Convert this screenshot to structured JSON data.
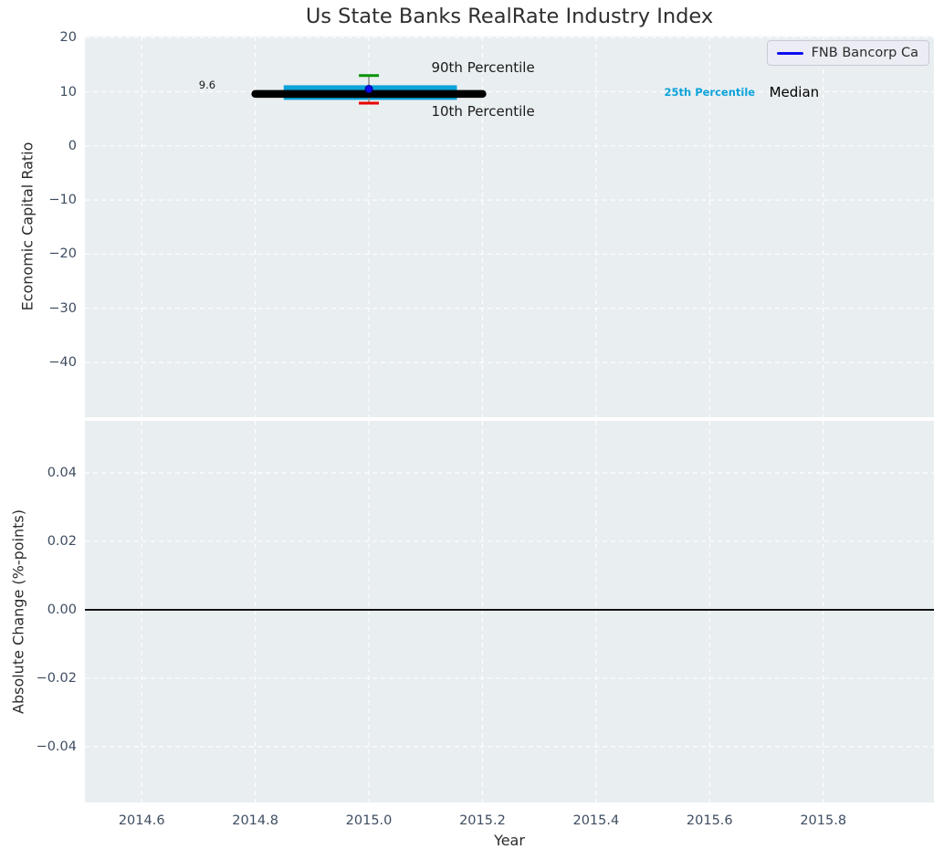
{
  "title": "Us State Banks RealRate Industry Index",
  "legend": {
    "label": "FNB Bancorp Ca"
  },
  "colors": {
    "panel_bg": "#e9eef1",
    "grid": "#ffffff",
    "tick_label": "#3e4d60",
    "axis_label": "#2b2b2b",
    "title": "#2e2e2e",
    "median_line": "#000000",
    "iqr_band": "#0ba3da",
    "p90_cap": "#0a9309",
    "p10_cap": "#e60000",
    "whisker": "#898989",
    "series_line": "#0b0bf0",
    "zero_line": "#000000",
    "legend_bg": "#ecedf4",
    "legend_border": "#c9cad3"
  },
  "x_axis": {
    "label": "Year",
    "lim": [
      2014.5,
      2015.995
    ],
    "ticks": [
      {
        "v": 2014.6,
        "label": "2014.6"
      },
      {
        "v": 2014.8,
        "label": "2014.8"
      },
      {
        "v": 2015.0,
        "label": "2015.0"
      },
      {
        "v": 2015.2,
        "label": "2015.2"
      },
      {
        "v": 2015.4,
        "label": "2015.4"
      },
      {
        "v": 2015.6,
        "label": "2015.6"
      },
      {
        "v": 2015.8,
        "label": "2015.8"
      }
    ]
  },
  "chart_data": [
    {
      "id": "industry-percentiles",
      "type": "box",
      "title": "Us State Banks RealRate Industry Index",
      "ylabel": "Economic Capital Ratio",
      "ylim": [
        -50.1,
        20.2
      ],
      "yticks": [
        {
          "v": 20,
          "label": "20"
        },
        {
          "v": 10,
          "label": "10"
        },
        {
          "v": 0,
          "label": "0"
        },
        {
          "v": -10,
          "label": "−10"
        },
        {
          "v": -20,
          "label": "−20"
        },
        {
          "v": -30,
          "label": "−30"
        },
        {
          "v": -40,
          "label": "−40"
        }
      ],
      "box": {
        "x": 2015.0,
        "median": 9.6,
        "median_span": [
          2014.8,
          2015.2
        ],
        "q1": 8.5,
        "q3": 11.2,
        "iqr_span": [
          2014.85,
          2015.155
        ],
        "p10": 7.9,
        "p90": 13.0
      },
      "series_point": {
        "name": "FNB Bancorp Ca",
        "x": 2015.0,
        "y": 10.5
      },
      "annotations": [
        {
          "text": "90th Percentile",
          "x": 2015.11,
          "y": 14.4,
          "ha": "left",
          "size": 15,
          "color": "#1a1a1a",
          "bold": false
        },
        {
          "text": "10th Percentile",
          "x": 2015.11,
          "y": 6.3,
          "ha": "left",
          "size": 15,
          "color": "#1a1a1a",
          "bold": false
        },
        {
          "text": "25th Percentile",
          "x": 2015.52,
          "y": 9.9,
          "ha": "left",
          "size": 11.5,
          "color": "#0ba3da",
          "bold": true
        },
        {
          "text": "Median",
          "x": 2015.705,
          "y": 9.9,
          "ha": "left",
          "size": 15,
          "color": "#000000",
          "bold": false
        },
        {
          "text": "9.6",
          "x": 2014.73,
          "y": 11.3,
          "ha": "right",
          "size": 11.5,
          "color": "#1a1a1a",
          "bold": false
        }
      ]
    },
    {
      "id": "absolute-change",
      "type": "line",
      "ylabel": "Absolute Change (%-points)",
      "ylim": [
        -0.0563,
        0.0552
      ],
      "yticks": [
        {
          "v": 0.04,
          "label": "0.04"
        },
        {
          "v": 0.02,
          "label": "0.02"
        },
        {
          "v": 0.0,
          "label": "0.00"
        },
        {
          "v": -0.02,
          "label": "−0.02"
        },
        {
          "v": -0.04,
          "label": "−0.04"
        }
      ],
      "zero_line": 0.0
    }
  ]
}
